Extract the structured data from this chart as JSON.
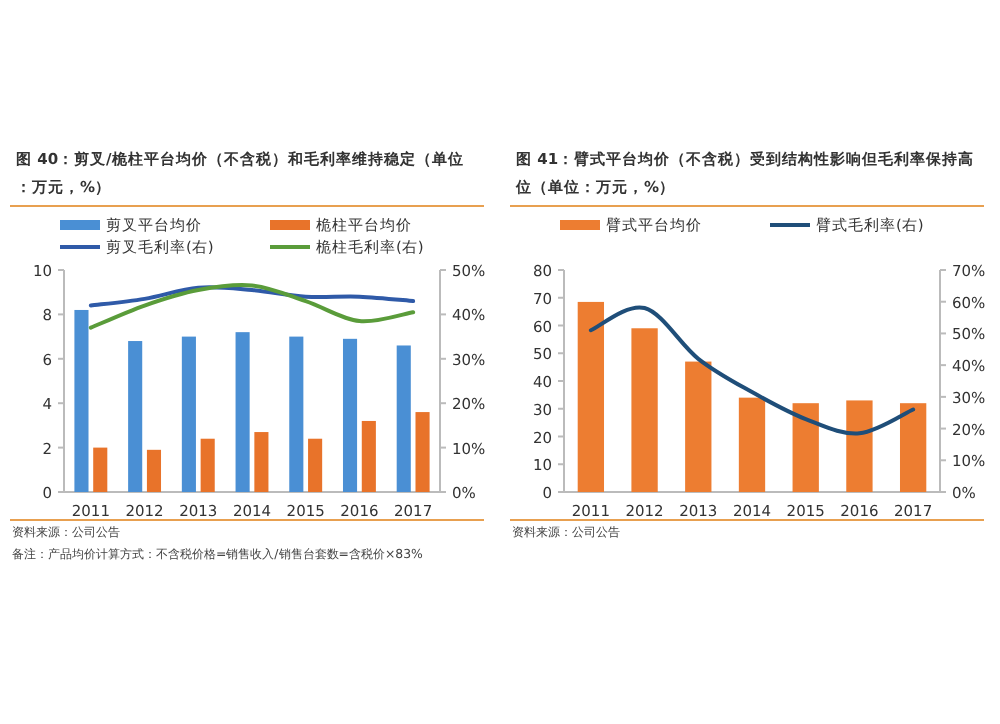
{
  "chart_data": [
    {
      "type": "bar",
      "title": "图 40：剪叉/桅柱平台均价（不含税）和毛利率维持稳定（单位：万元，%）",
      "categories": [
        "2011",
        "2012",
        "2013",
        "2014",
        "2015",
        "2016",
        "2017"
      ],
      "series": [
        {
          "name": "剪叉平台均价",
          "color": "#4a8fd4",
          "values": [
            8.2,
            6.8,
            7.0,
            7.2,
            7.0,
            6.9,
            6.6
          ]
        },
        {
          "name": "桅柱平台均价",
          "color": "#e8732a",
          "values": [
            2.0,
            1.9,
            2.4,
            2.7,
            2.4,
            3.2,
            3.6
          ]
        },
        {
          "name": "剪叉毛利率(右)",
          "type": "line",
          "axis": "y2",
          "color": "#2f5aa8",
          "values": [
            42,
            43.5,
            46,
            45.5,
            44,
            44,
            43
          ]
        },
        {
          "name": "桅柱毛利率(右)",
          "type": "line",
          "axis": "y2",
          "color": "#5a9c3a",
          "values": [
            37,
            42,
            45.5,
            46.5,
            43,
            38.5,
            40.5
          ]
        }
      ],
      "ylim": [
        0,
        10
      ],
      "yticks": [
        0,
        2,
        4,
        6,
        8,
        10
      ],
      "y2lim": [
        0,
        50
      ],
      "y2ticks": [
        {
          "value": 0,
          "label": "0%"
        },
        {
          "value": 10,
          "label": "10%"
        },
        {
          "value": 20,
          "label": "20%"
        },
        {
          "value": 30,
          "label": "30%"
        },
        {
          "value": 40,
          "label": "40%"
        },
        {
          "value": 50,
          "label": "50%"
        }
      ],
      "legend": "top",
      "grid": false,
      "annotations": [
        "资料来源：公司公告",
        "备注：产品均价计算方式：不含税价格=销售收入/销售台套数=含税价×83%"
      ]
    },
    {
      "type": "bar",
      "title": "图 41：臂式平台均价（不含税）受到结构性影响但毛利率保持高位（单位：万元，%）",
      "categories": [
        "2011",
        "2012",
        "2013",
        "2014",
        "2015",
        "2016",
        "2017"
      ],
      "series": [
        {
          "name": "臂式平台均价",
          "color": "#ed7d31",
          "values": [
            68.5,
            59,
            47,
            34,
            32,
            33,
            32
          ]
        },
        {
          "name": "臂式毛利率(右)",
          "type": "line",
          "axis": "y2",
          "color": "#1f4e79",
          "values": [
            51,
            58,
            42,
            31.5,
            23,
            18.5,
            26
          ]
        }
      ],
      "ylim": [
        0,
        80
      ],
      "yticks": [
        0,
        10,
        20,
        30,
        40,
        50,
        60,
        70,
        80
      ],
      "y2lim": [
        0,
        70
      ],
      "y2ticks": [
        {
          "value": 0,
          "label": "0%"
        },
        {
          "value": 10,
          "label": "10%"
        },
        {
          "value": 20,
          "label": "20%"
        },
        {
          "value": 30,
          "label": "30%"
        },
        {
          "value": 40,
          "label": "40%"
        },
        {
          "value": 50,
          "label": "50%"
        },
        {
          "value": 60,
          "label": "60%"
        },
        {
          "value": 70,
          "label": "70%"
        }
      ],
      "legend": "top",
      "grid": false,
      "annotations": [
        "资料来源：公司公告"
      ]
    }
  ]
}
